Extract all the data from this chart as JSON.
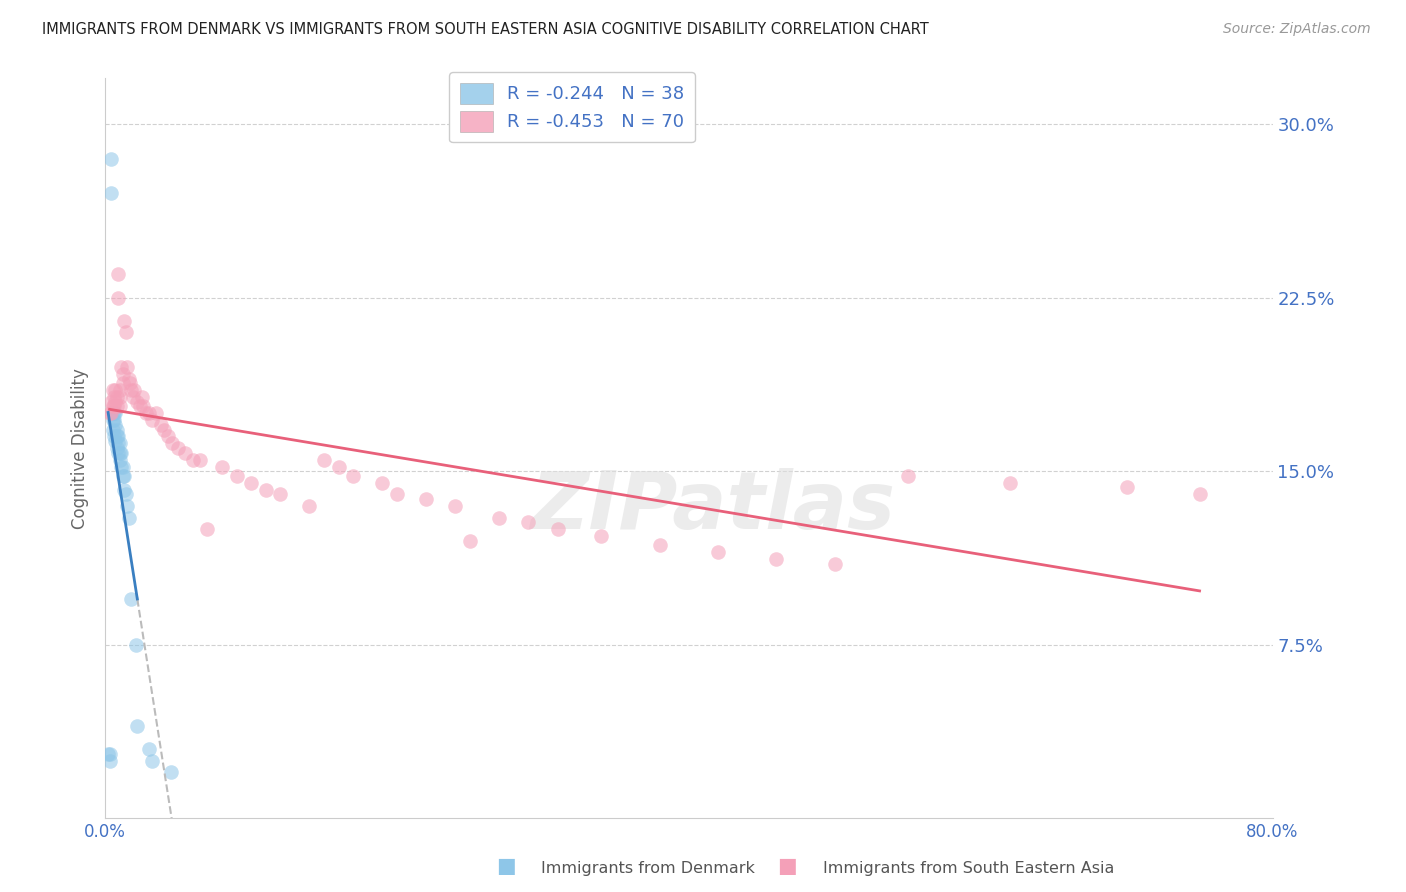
{
  "title": "IMMIGRANTS FROM DENMARK VS IMMIGRANTS FROM SOUTH EASTERN ASIA COGNITIVE DISABILITY CORRELATION CHART",
  "source": "Source: ZipAtlas.com",
  "ylabel": "Cognitive Disability",
  "ytick_labels": [
    "7.5%",
    "15.0%",
    "22.5%",
    "30.0%"
  ],
  "ytick_values": [
    0.075,
    0.15,
    0.225,
    0.3
  ],
  "xlim": [
    0.0,
    0.8
  ],
  "ylim": [
    0.0,
    0.32
  ],
  "legend_r1": "-0.244",
  "legend_n1": "38",
  "legend_r2": "-0.453",
  "legend_n2": "70",
  "color_denmark": "#8ec6e8",
  "color_sea": "#f4a0b8",
  "color_denmark_line": "#3a7fc1",
  "color_sea_line": "#e8607a",
  "color_axis_labels": "#4472c4",
  "watermark": "ZIPatlas",
  "dk_x": [
    0.002,
    0.003,
    0.003,
    0.004,
    0.004,
    0.005,
    0.005,
    0.005,
    0.006,
    0.006,
    0.006,
    0.007,
    0.007,
    0.007,
    0.008,
    0.008,
    0.008,
    0.009,
    0.009,
    0.009,
    0.01,
    0.01,
    0.01,
    0.011,
    0.011,
    0.012,
    0.012,
    0.013,
    0.013,
    0.014,
    0.015,
    0.016,
    0.018,
    0.021,
    0.022,
    0.03,
    0.032,
    0.045
  ],
  "dk_y": [
    0.028,
    0.028,
    0.025,
    0.285,
    0.27,
    0.175,
    0.172,
    0.168,
    0.175,
    0.172,
    0.165,
    0.175,
    0.17,
    0.163,
    0.168,
    0.165,
    0.16,
    0.165,
    0.162,
    0.158,
    0.162,
    0.158,
    0.155,
    0.158,
    0.152,
    0.152,
    0.148,
    0.148,
    0.142,
    0.14,
    0.135,
    0.13,
    0.095,
    0.075,
    0.04,
    0.03,
    0.025,
    0.02
  ],
  "sea_x": [
    0.003,
    0.004,
    0.004,
    0.005,
    0.005,
    0.006,
    0.006,
    0.007,
    0.007,
    0.008,
    0.008,
    0.009,
    0.009,
    0.01,
    0.01,
    0.01,
    0.011,
    0.012,
    0.012,
    0.013,
    0.014,
    0.015,
    0.016,
    0.017,
    0.018,
    0.019,
    0.02,
    0.022,
    0.024,
    0.025,
    0.026,
    0.028,
    0.03,
    0.032,
    0.035,
    0.038,
    0.04,
    0.043,
    0.046,
    0.05,
    0.055,
    0.06,
    0.065,
    0.07,
    0.08,
    0.09,
    0.1,
    0.11,
    0.12,
    0.14,
    0.15,
    0.16,
    0.17,
    0.19,
    0.2,
    0.22,
    0.24,
    0.25,
    0.27,
    0.29,
    0.31,
    0.34,
    0.38,
    0.42,
    0.46,
    0.5,
    0.55,
    0.62,
    0.7,
    0.75
  ],
  "sea_y": [
    0.175,
    0.18,
    0.175,
    0.185,
    0.178,
    0.182,
    0.178,
    0.185,
    0.18,
    0.182,
    0.178,
    0.235,
    0.225,
    0.185,
    0.182,
    0.178,
    0.195,
    0.192,
    0.188,
    0.215,
    0.21,
    0.195,
    0.19,
    0.188,
    0.185,
    0.182,
    0.185,
    0.18,
    0.178,
    0.182,
    0.178,
    0.175,
    0.175,
    0.172,
    0.175,
    0.17,
    0.168,
    0.165,
    0.162,
    0.16,
    0.158,
    0.155,
    0.155,
    0.125,
    0.152,
    0.148,
    0.145,
    0.142,
    0.14,
    0.135,
    0.155,
    0.152,
    0.148,
    0.145,
    0.14,
    0.138,
    0.135,
    0.12,
    0.13,
    0.128,
    0.125,
    0.122,
    0.118,
    0.115,
    0.112,
    0.11,
    0.148,
    0.145,
    0.143,
    0.14
  ]
}
